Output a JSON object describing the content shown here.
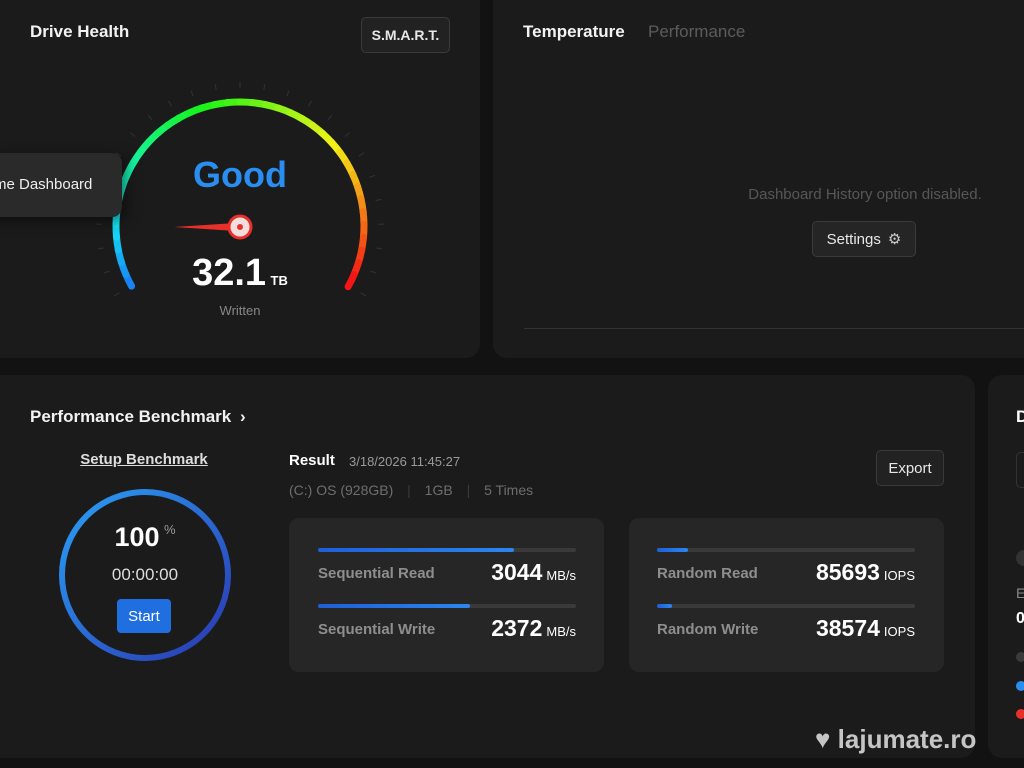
{
  "drive_health": {
    "title": "Drive Health",
    "smart_label": "S.M.A.R.T.",
    "status": "Good",
    "written_value": "32.1",
    "written_unit": "TB",
    "written_label": "Written",
    "status_color": "#2a8ef0"
  },
  "tooltip": {
    "text": "me Dashboard"
  },
  "temperature": {
    "tabs": [
      {
        "label": "Temperature",
        "active": true
      },
      {
        "label": "Performance",
        "active": false
      }
    ],
    "message": "Dashboard History option disabled.",
    "settings_label": "Settings"
  },
  "benchmark": {
    "title": "Performance Benchmark",
    "setup_label": "Setup Benchmark",
    "progress_value": "100",
    "progress_unit": "%",
    "elapsed": "00:00:00",
    "start_label": "Start",
    "result_label": "Result",
    "result_time": "3/18/2026 11:45:27",
    "drive": "(C:) OS (928GB)",
    "size": "1GB",
    "runs": "5 Times",
    "export_label": "Export",
    "metrics": [
      {
        "label": "Sequential Read",
        "value": "3044",
        "unit": "MB/s",
        "fill": 0.76
      },
      {
        "label": "Sequential Write",
        "value": "2372",
        "unit": "MB/s",
        "fill": 0.59
      },
      {
        "label": "Random Read",
        "value": "85693",
        "unit": "IOPS",
        "fill": 0.12
      },
      {
        "label": "Random Write",
        "value": "38574",
        "unit": "IOPS",
        "fill": 0.06
      }
    ]
  },
  "side_panel": {
    "heading_initial": "D",
    "label_initial": "E",
    "value_initial": "0"
  },
  "watermark": "lajumate.ro"
}
